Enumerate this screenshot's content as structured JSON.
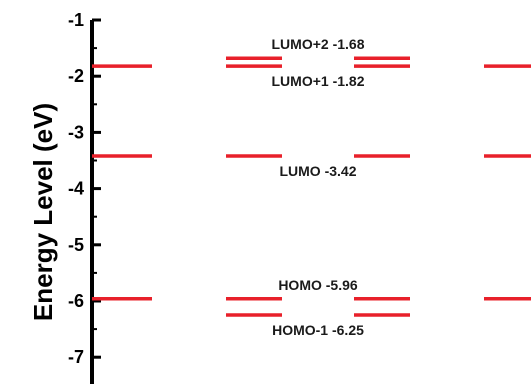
{
  "chart_data": {
    "type": "energy-level-diagram",
    "ylabel": "Energy Level (eV)",
    "ylim": [
      -7.5,
      -1.0
    ],
    "yticks": [
      -1,
      -2,
      -3,
      -4,
      -5,
      -6,
      -7
    ],
    "ytick_labels": [
      "-1",
      "-2",
      "-3",
      "-4",
      "-5",
      "-6",
      "-7"
    ],
    "line_color": "#e8202a",
    "columns": [
      {
        "levels": [
          {
            "energy": -1.82,
            "label": ""
          },
          {
            "energy": -3.42,
            "label": ""
          },
          {
            "energy": -5.96,
            "label": ""
          }
        ]
      },
      {
        "levels": [
          {
            "energy": -1.68,
            "label": ""
          },
          {
            "energy": -1.82,
            "label": ""
          },
          {
            "energy": -3.42,
            "label": ""
          },
          {
            "energy": -5.96,
            "label": ""
          },
          {
            "energy": -6.25,
            "label": ""
          }
        ]
      },
      {
        "levels": [
          {
            "energy": -1.68,
            "label": ""
          },
          {
            "energy": -1.82,
            "label": ""
          },
          {
            "energy": -3.42,
            "label": ""
          },
          {
            "energy": -5.96,
            "label": ""
          },
          {
            "energy": -6.25,
            "label": ""
          }
        ]
      },
      {
        "levels": [
          {
            "energy": -1.82,
            "label": ""
          },
          {
            "energy": -3.42,
            "label": ""
          },
          {
            "energy": -5.96,
            "label": ""
          }
        ]
      }
    ],
    "annotations": [
      {
        "text": "LUMO+2 -1.68",
        "energy": -1.68,
        "position": "above"
      },
      {
        "text": "LUMO+1 -1.82",
        "energy": -1.82,
        "position": "below"
      },
      {
        "text": "LUMO -3.42",
        "energy": -3.42,
        "position": "below"
      },
      {
        "text": "HOMO -5.96",
        "energy": -5.96,
        "position": "above"
      },
      {
        "text": "HOMO-1 -6.25",
        "energy": -6.25,
        "position": "below"
      }
    ]
  }
}
